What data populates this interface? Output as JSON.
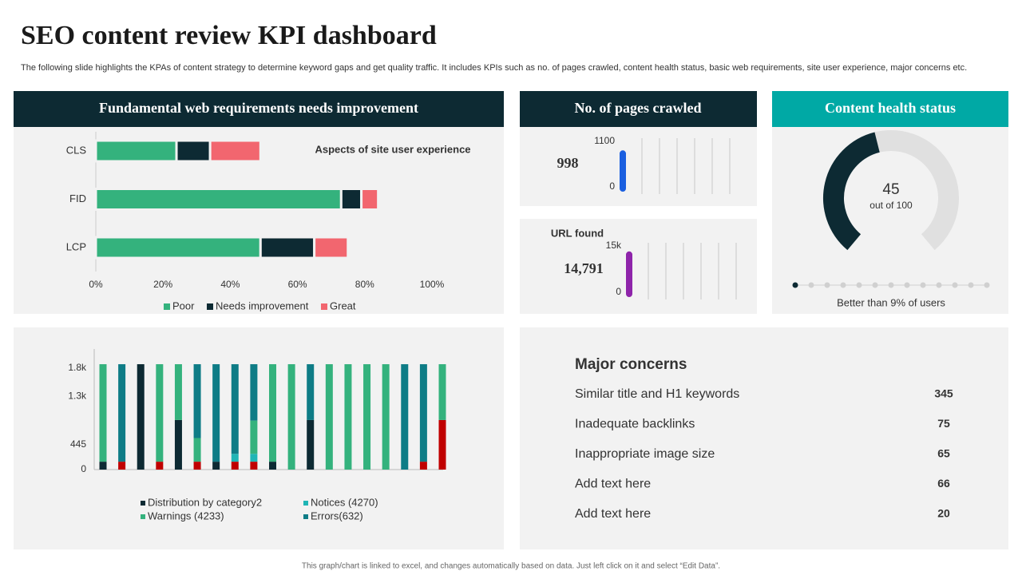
{
  "title": "SEO content review KPI dashboard",
  "description": "The following slide highlights the KPAs of content strategy to  determine keyword gaps and get quality traffic. It includes KPIs such as no. of pages crawled, content health status, basic web requirements, site user experience, major concerns etc.",
  "footer": "This graph/chart is linked to excel, and changes automatically based on data. Just left click on it and select “Edit Data”.",
  "chart_data": [
    {
      "type": "hbar_stacked",
      "title": "Fundamental web requirements needs improvement",
      "annotation": "Aspects of site user experience",
      "categories": [
        "CLS",
        "FID",
        "LCP"
      ],
      "series": [
        {
          "name": "Poor",
          "color": "#34b27d",
          "values": [
            24,
            73,
            49
          ]
        },
        {
          "name": "Needs improvement",
          "color": "#0d2a33",
          "values": [
            10,
            6,
            16
          ]
        },
        {
          "name": "Great",
          "color": "#f2666f",
          "values": [
            15,
            5,
            10
          ]
        }
      ],
      "xlim": [
        0,
        100
      ],
      "xticks": [
        {
          "value": 0,
          "label": "0%"
        },
        {
          "value": 20,
          "label": "20%"
        },
        {
          "value": 40,
          "label": "40%"
        },
        {
          "value": 60,
          "label": "60%"
        },
        {
          "value": 80,
          "label": "80%"
        },
        {
          "value": 100,
          "label": "100%"
        }
      ]
    },
    {
      "type": "gauge_bar",
      "title": "No. of pages crawled",
      "value": 998,
      "color": "#1a5fe0",
      "ylim": [
        0,
        1100
      ],
      "yticks": [
        0,
        1100
      ]
    },
    {
      "type": "gauge_bar",
      "title": "URL found",
      "value": 14791,
      "value_label": "14,791",
      "color": "#8e24aa",
      "ylim": [
        0,
        15000
      ],
      "yticks": [
        0,
        {
          "value": 15000,
          "label": "15k"
        }
      ]
    },
    {
      "type": "donut_gauge",
      "title": "Content health status",
      "value": 45,
      "value_caption": "out of 100",
      "max": 100,
      "color": "#0d2a33",
      "note": "Better than 9% of users"
    },
    {
      "type": "column_stacked",
      "series": [
        {
          "color": "#c00000",
          "values": [
            0,
            140,
            0,
            140,
            0,
            140,
            0,
            140,
            140,
            0,
            0,
            0,
            0,
            0,
            0,
            0,
            0,
            140,
            880
          ]
        },
        {
          "name": "Distribution by category2",
          "color": "#0d2a33",
          "values": [
            140,
            0,
            1870,
            0,
            880,
            0,
            140,
            0,
            0,
            140,
            0,
            880,
            0,
            0,
            0,
            0,
            0,
            0,
            0
          ]
        },
        {
          "name": "Notices (4270)",
          "color": "#1fb5b5",
          "values": [
            0,
            0,
            0,
            0,
            0,
            0,
            0,
            140,
            140,
            0,
            0,
            0,
            0,
            0,
            0,
            0,
            0,
            0,
            0
          ]
        },
        {
          "name": "Warnings (4233)",
          "color": "#34b27d",
          "values": [
            1730,
            0,
            0,
            1730,
            990,
            420,
            0,
            0,
            590,
            1730,
            1870,
            0,
            1870,
            1870,
            1870,
            1870,
            0,
            0,
            990
          ]
        },
        {
          "name": "Errors(632)",
          "color": "#0e7c86",
          "values": [
            0,
            1730,
            0,
            0,
            0,
            1310,
            1730,
            1590,
            1000,
            0,
            0,
            990,
            0,
            0,
            0,
            0,
            1870,
            1730,
            0
          ]
        }
      ],
      "ylim": [
        0,
        1950
      ],
      "yticks": [
        0,
        445,
        {
          "value": 1300,
          "label": "1.3k"
        },
        {
          "value": 1800,
          "label": "1.8k"
        }
      ]
    }
  ],
  "concerns": {
    "title": "Major concerns",
    "items": [
      {
        "label": "Similar title and H1 keywords",
        "value": 345
      },
      {
        "label": "Inadequate backlinks",
        "value": 75
      },
      {
        "label": "Inappropriate image size",
        "value": 65
      },
      {
        "label": "Add text here",
        "value": 66
      },
      {
        "label": "Add text here",
        "value": 20
      }
    ]
  }
}
